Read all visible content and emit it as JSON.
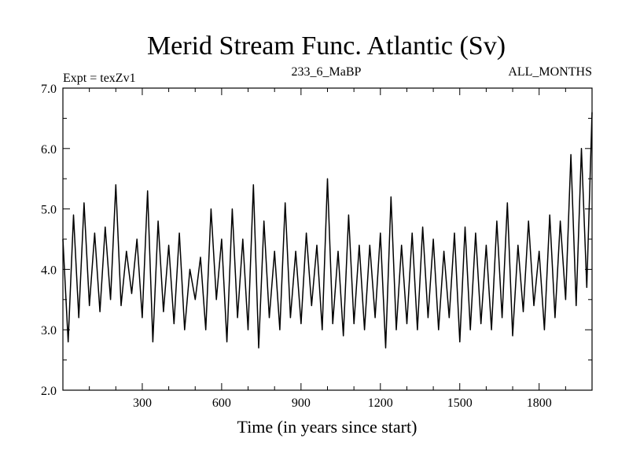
{
  "chart_data": {
    "type": "line",
    "title": "Merid Stream Func. Atlantic (Sv)",
    "left_label": "Expt = texZv1",
    "center_label": "233_6_MaBP",
    "right_label": "ALL_MONTHS",
    "xlabel": "Time (in years since start)",
    "ylabel": "",
    "xlim": [
      0,
      2000
    ],
    "ylim": [
      2.0,
      7.0
    ],
    "x_ticks": [
      300,
      600,
      900,
      1200,
      1500,
      1800
    ],
    "x_tick_labels": [
      "300",
      "600",
      "900",
      "1200",
      "1500",
      "1800"
    ],
    "y_ticks": [
      2.0,
      3.0,
      4.0,
      5.0,
      6.0,
      7.0
    ],
    "y_tick_labels": [
      "2.0",
      "3.0",
      "4.0",
      "5.0",
      "6.0",
      "7.0"
    ],
    "grid": false,
    "line_color": "#000000",
    "series": [
      {
        "x": [
          0,
          20,
          40,
          60,
          80,
          100,
          120,
          140,
          160,
          180,
          200,
          220,
          240,
          260,
          280,
          300,
          320,
          340,
          360,
          380,
          400,
          420,
          440,
          460,
          480,
          500,
          520,
          540,
          560,
          580,
          600,
          620,
          640,
          660,
          680,
          700,
          720,
          740,
          760,
          780,
          800,
          820,
          840,
          860,
          880,
          900,
          920,
          940,
          960,
          980,
          1000,
          1020,
          1040,
          1060,
          1080,
          1100,
          1120,
          1140,
          1160,
          1180,
          1200,
          1220,
          1240,
          1260,
          1280,
          1300,
          1320,
          1340,
          1360,
          1380,
          1400,
          1420,
          1440,
          1460,
          1480,
          1500,
          1520,
          1540,
          1560,
          1580,
          1600,
          1620,
          1640,
          1660,
          1680,
          1700,
          1720,
          1740,
          1760,
          1780,
          1800,
          1820,
          1840,
          1860,
          1880,
          1900,
          1920,
          1940,
          1960,
          1980,
          2000
        ],
        "y": [
          4.5,
          2.8,
          4.9,
          3.2,
          5.1,
          3.4,
          4.6,
          3.3,
          4.7,
          3.5,
          5.4,
          3.4,
          4.3,
          3.6,
          4.5,
          3.2,
          5.3,
          2.8,
          4.8,
          3.3,
          4.4,
          3.1,
          4.6,
          3.0,
          4.0,
          3.5,
          4.2,
          3.0,
          5.0,
          3.5,
          4.5,
          2.8,
          5.0,
          3.2,
          4.5,
          3.0,
          5.4,
          2.7,
          4.8,
          3.2,
          4.3,
          3.0,
          5.1,
          3.2,
          4.3,
          3.1,
          4.6,
          3.4,
          4.4,
          3.0,
          5.5,
          3.1,
          4.3,
          2.9,
          4.9,
          3.1,
          4.4,
          3.0,
          4.4,
          3.2,
          4.6,
          2.7,
          5.2,
          3.0,
          4.4,
          3.1,
          4.6,
          3.0,
          4.7,
          3.2,
          4.5,
          3.0,
          4.3,
          3.2,
          4.6,
          2.8,
          4.7,
          3.0,
          4.6,
          3.1,
          4.4,
          3.0,
          4.8,
          3.2,
          5.1,
          2.9,
          4.4,
          3.3,
          4.8,
          3.4,
          4.3,
          3.0,
          4.9,
          3.2,
          4.8,
          3.5,
          5.9,
          3.4,
          6.0,
          3.7,
          6.6
        ]
      }
    ]
  }
}
